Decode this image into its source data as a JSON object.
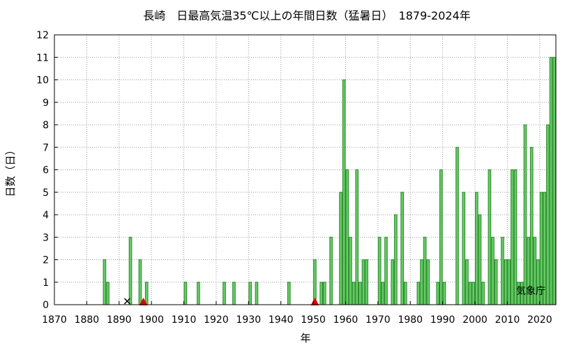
{
  "chart_data": {
    "type": "bar",
    "title": "長崎　日最高気温35℃以上の年間日数（猛暑日）　1879-2024年",
    "xlabel": "年",
    "ylabel": "日数（日）",
    "watermark": "気象庁",
    "xlim": [
      1870,
      2025
    ],
    "ylim": [
      0,
      12
    ],
    "xticks": [
      1870,
      1880,
      1890,
      1900,
      1910,
      1920,
      1930,
      1940,
      1950,
      1960,
      1970,
      1980,
      1990,
      2000,
      2010,
      2020
    ],
    "yticks": [
      0,
      1,
      2,
      3,
      4,
      5,
      6,
      7,
      8,
      9,
      10,
      11,
      12
    ],
    "grid": true,
    "bar_color": "#66cc66",
    "bar_edge_color": "#2a8a2a",
    "marker_color_triangle": "#dd0000",
    "marker_color_x": "#000000",
    "markers": [
      {
        "year": 1892,
        "symbol": "x"
      },
      {
        "year": 1897,
        "symbol": "triangle"
      },
      {
        "year": 1950,
        "symbol": "triangle"
      }
    ],
    "x": [
      1885,
      1886,
      1893,
      1896,
      1898,
      1910,
      1914,
      1922,
      1925,
      1930,
      1932,
      1942,
      1950,
      1952,
      1953,
      1955,
      1958,
      1959,
      1960,
      1961,
      1962,
      1963,
      1964,
      1965,
      1966,
      1967,
      1970,
      1971,
      1972,
      1974,
      1975,
      1977,
      1978,
      1982,
      1983,
      1984,
      1985,
      1988,
      1989,
      1990,
      1994,
      1995,
      1996,
      1997,
      1998,
      1999,
      2000,
      2001,
      2002,
      2003,
      2004,
      2005,
      2006,
      2007,
      2008,
      2009,
      2010,
      2011,
      2012,
      2013,
      2014,
      2015,
      2016,
      2017,
      2018,
      2019,
      2020,
      2021,
      2022,
      2023,
      2024
    ],
    "values": [
      2,
      1,
      3,
      2,
      1,
      1,
      1,
      1,
      1,
      1,
      1,
      1,
      2,
      1,
      1,
      3,
      5,
      10,
      6,
      3,
      1,
      6,
      1,
      2,
      2,
      0,
      3,
      1,
      3,
      2,
      4,
      5,
      1,
      1,
      2,
      3,
      2,
      1,
      6,
      1,
      7,
      0,
      5,
      2,
      1,
      1,
      5,
      4,
      1,
      0,
      6,
      3,
      2,
      0,
      3,
      2,
      2,
      6,
      6,
      1,
      1,
      8,
      3,
      7,
      3,
      2,
      5,
      5,
      8,
      11,
      11
    ]
  }
}
